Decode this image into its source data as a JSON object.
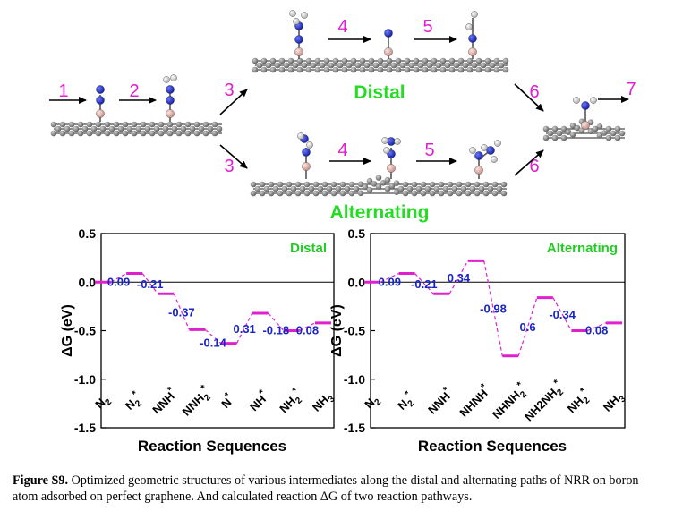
{
  "scheme": {
    "steps_top": [
      "1",
      "2",
      "3",
      "4",
      "5",
      "6",
      "7"
    ],
    "steps_bottom": [
      "3",
      "4",
      "5",
      "6"
    ],
    "distal_label": "Distal",
    "alternating_label": "Alternating",
    "colors": {
      "step": "#e020d0",
      "path_label": "#22dd22",
      "nitrogen": "#1a24c8",
      "hydrogen": "#e8e8e8",
      "boron": "#e8b0a8",
      "carbon": "#808080"
    }
  },
  "chart_data": [
    {
      "type": "line",
      "title": "Distal",
      "xlabel": "Reaction Sequences",
      "ylabel": "ΔG (eV)",
      "ylim": [
        -1.5,
        0.5
      ],
      "yticks": [
        "0.5",
        "0.0",
        "-0.5",
        "-1.0",
        "-1.5"
      ],
      "categories": [
        "N2",
        "N2*",
        "NNH*",
        "NNH2*",
        "N*",
        "NH*",
        "NH2*",
        "NH3"
      ],
      "category_labels": [
        {
          "base": "N",
          "sub": "2",
          "sup": ""
        },
        {
          "base": "N",
          "sub": "2",
          "sup": "*"
        },
        {
          "base": "NNH",
          "sub": "",
          "sup": "*"
        },
        {
          "base": "NNH",
          "sub": "2",
          "sup": "*"
        },
        {
          "base": "N",
          "sub": "",
          "sup": "*"
        },
        {
          "base": "NH",
          "sub": "",
          "sup": "*"
        },
        {
          "base": "NH",
          "sub": "2",
          "sup": "*"
        },
        {
          "base": "NH",
          "sub": "3",
          "sup": ""
        }
      ],
      "values": [
        0.0,
        0.09,
        -0.12,
        -0.49,
        -0.63,
        -0.32,
        -0.5,
        -0.42
      ],
      "step_labels": [
        "0.09",
        "-0.21",
        "-0.37",
        "-0.14",
        "0.31",
        "-0.18",
        "0.08"
      ],
      "colors": {
        "level": "#e020d0",
        "label": "#1a24c8",
        "title": "#22cc22"
      }
    },
    {
      "type": "line",
      "title": "Alternating",
      "xlabel": "Reaction Sequences",
      "ylabel": "ΔG (eV)",
      "ylim": [
        -1.5,
        0.5
      ],
      "yticks": [
        "0.5",
        "0.0",
        "-0.5",
        "-1.0",
        "-1.5"
      ],
      "categories": [
        "N2",
        "N2*",
        "NNH*",
        "NHNH*",
        "NHNH2*",
        "NH2NH2*",
        "NH2*",
        "NH3"
      ],
      "category_labels": [
        {
          "base": "N",
          "sub": "2",
          "sup": ""
        },
        {
          "base": "N",
          "sub": "2",
          "sup": "*"
        },
        {
          "base": "NNH",
          "sub": "",
          "sup": "*"
        },
        {
          "base": "NHNH",
          "sub": "",
          "sup": "*"
        },
        {
          "base": "NHNH",
          "sub": "2",
          "sup": "*"
        },
        {
          "base": "NH2NH",
          "sub": "2",
          "sup": "*"
        },
        {
          "base": "NH",
          "sub": "2",
          "sup": "*"
        },
        {
          "base": "NH",
          "sub": "3",
          "sup": ""
        }
      ],
      "values": [
        0.0,
        0.09,
        -0.12,
        0.22,
        -0.76,
        -0.16,
        -0.5,
        -0.42
      ],
      "step_labels": [
        "0.09",
        "-0.21",
        "0.34",
        "-0.98",
        "0.6",
        "-0.34",
        "0.08"
      ],
      "colors": {
        "level": "#e020d0",
        "label": "#1a24c8",
        "title": "#22cc22"
      }
    }
  ],
  "caption": {
    "label": "Figure S9.",
    "text": " Optimized geometric structures of various intermediates along the distal and alternating paths of NRR on boron atom adsorbed on perfect graphene. And calculated reaction ΔG of two reaction pathways."
  }
}
